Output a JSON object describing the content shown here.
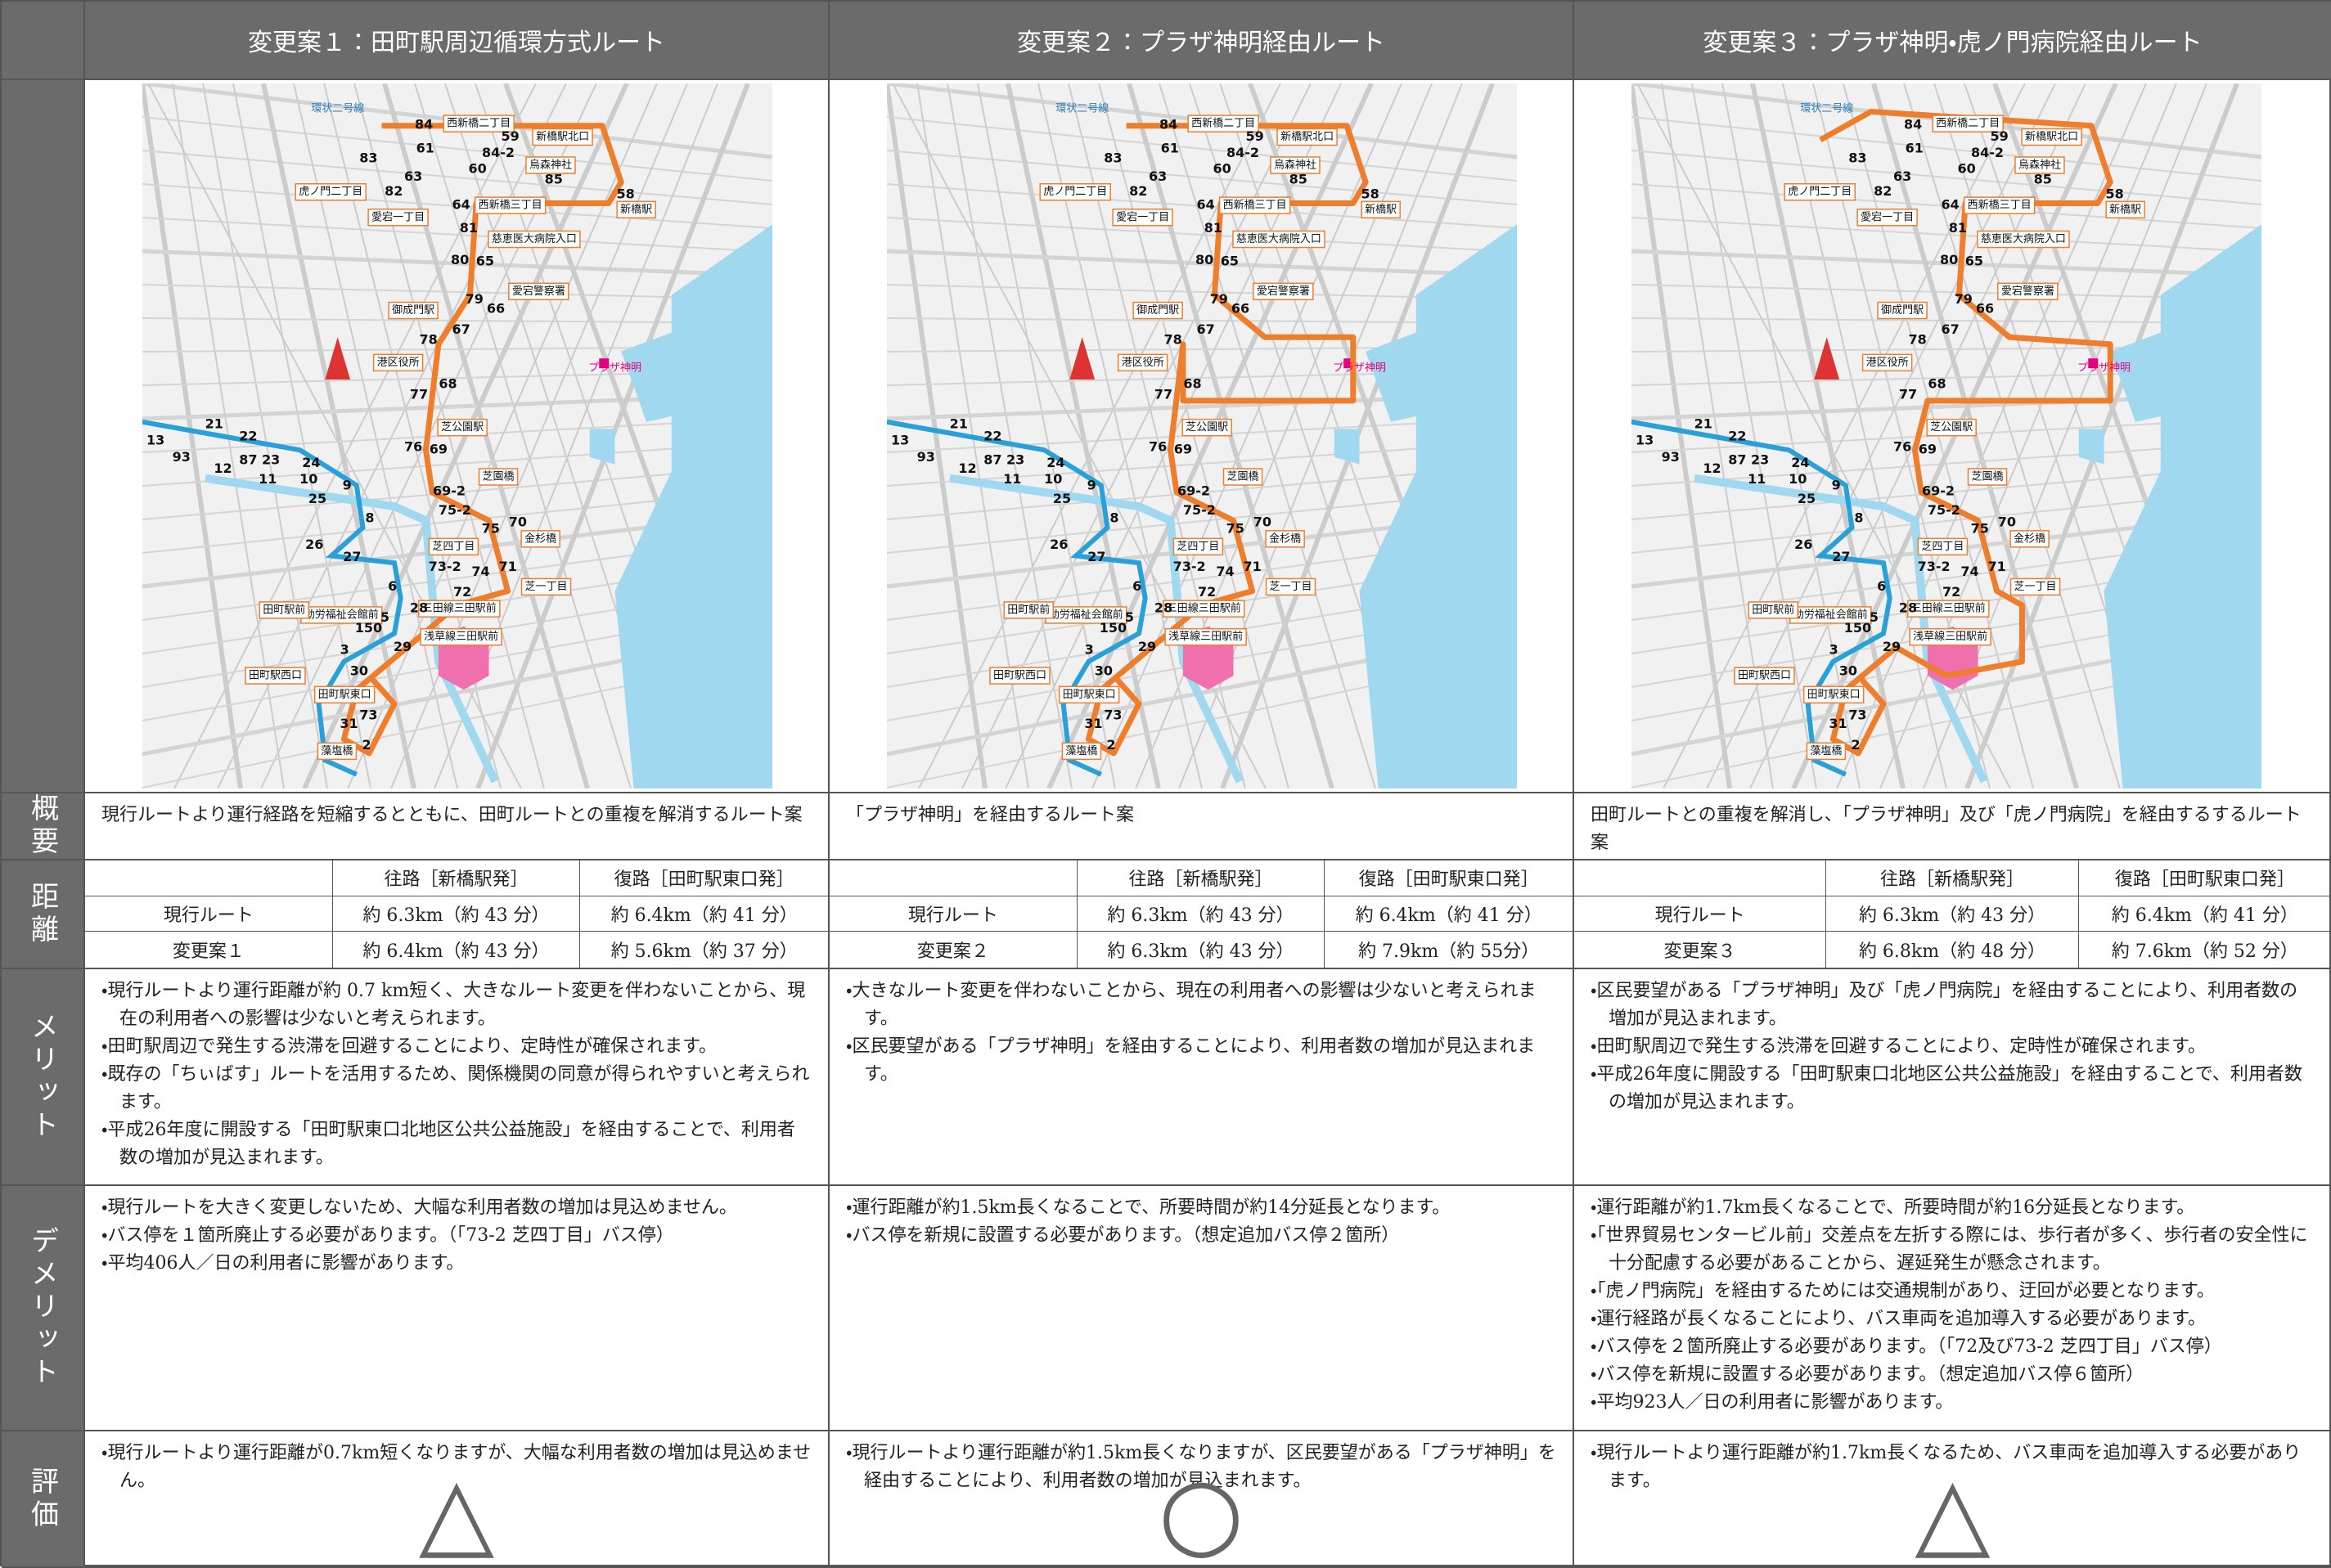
{
  "header": {
    "columns": [
      "変更案１：田町駅周辺循環方式ルート",
      "変更案２：プラザ神明経由ルート",
      "変更案３：プラザ神明・虎ノ門病院経由ルート"
    ]
  },
  "row_labels": [
    "概要",
    "距離",
    "メリット",
    "デメリット",
    "評価"
  ],
  "map_labels": [
    "環状二号線",
    "84",
    "西新橋二丁目",
    "59",
    "新橋駅北口",
    "61",
    "84-2",
    "烏森神社",
    "83",
    "63",
    "60",
    "85",
    "虎ノ門二丁目",
    "82",
    "64",
    "西新橋三丁目",
    "58",
    "新橋駅",
    "愛宕一丁目",
    "81",
    "慈恵医大病院入口",
    "80",
    "65",
    "愛宕警察署",
    "79",
    "66",
    "御成門駅",
    "67",
    "78",
    "港区役所",
    "68",
    "77",
    "プラザ神明",
    "芝公園駅",
    "76",
    "69",
    "芝園橋",
    "69-2",
    "75-2",
    "75",
    "70",
    "金杉橋",
    "芝四丁目",
    "73-2",
    "74",
    "71",
    "芝一丁目",
    "72",
    "三田線三田駅前",
    "28",
    "勤労福祉会館前",
    "150",
    "浅草線三田駅前",
    "29",
    "3",
    "30",
    "田町駅西口",
    "田町駅東口",
    "73",
    "31",
    "2",
    "藻塩橋",
    "田町駅前",
    "13",
    "93",
    "21",
    "22",
    "87",
    "23",
    "12",
    "11",
    "24",
    "10",
    "25",
    "9",
    "8",
    "26",
    "27",
    "6",
    "5"
  ],
  "plans": [
    {
      "summary": "現行ルートより運行経路を短縮するとともに、田町ルートとの重複を解消するルート案",
      "distance": {
        "headers": [
          "往路［新橋駅発］",
          "復路［田町駅東口発］"
        ],
        "rows": [
          [
            "現行ルート",
            "約 6.3km（約 43 分）",
            "約 6.4km（約 41 分）"
          ],
          [
            "変更案１",
            "約 6.4km（約 43 分）",
            "約 5.6km（約 37 分）"
          ]
        ]
      },
      "merits": [
        "・現行ルートより運行距離が約 0.7 km短く、大きなルート変更を伴わないことから、現在の利用者への影響は少ないと考えられます。",
        "・田町駅周辺で発生する渋滞を回避することにより、定時性が確保されます。",
        "・既存の「ちぃばす」ルートを活用するため、関係機関の同意が得られやすいと考えられます。",
        "・平成26年度に開設する「田町駅東口北地区公共公益施設」を経由することで、利用者数の増加が見込まれます。"
      ],
      "demerits": [
        "・現行ルートを大きく変更しないため、大幅な利用者数の増加は見込めません。",
        "・バス停を１箇所廃止する必要があります。（「73-2 芝四丁目」バス停）",
        "・平均406人／日の利用者に影響があります。"
      ],
      "evaluation": "・現行ルートより運行距離が0.7km短くなりますが、大幅な利用者数の増加は見込めません。",
      "rating": "△"
    },
    {
      "summary": "「プラザ神明」を経由するルート案",
      "distance": {
        "headers": [
          "往路［新橋駅発］",
          "復路［田町駅東口発］"
        ],
        "rows": [
          [
            "現行ルート",
            "約 6.3km（約 43 分）",
            "約 6.4km（約 41 分）"
          ],
          [
            "変更案２",
            "約 6.3km（約 43 分）",
            "約 7.9km（約 55分）"
          ]
        ]
      },
      "merits": [
        "・大きなルート変更を伴わないことから、現在の利用者への影響は少ないと考えられます。",
        "・区民要望がある「プラザ神明」を経由することにより、利用者数の増加が見込まれます。"
      ],
      "demerits": [
        "・運行距離が約1.5km長くなることで、所要時間が約14分延長となります。",
        "・バス停を新規に設置する必要があります。（想定追加バス停２箇所）"
      ],
      "evaluation": "・現行ルートより運行距離が約1.5km長くなりますが、区民要望がある「プラザ神明」を経由することにより、利用者数の増加が見込まれます。",
      "rating": "○"
    },
    {
      "summary": "田町ルートとの重複を解消し、「プラザ神明」及び「虎ノ門病院」を経由するするルート案",
      "distance": {
        "headers": [
          "往路［新橋駅発］",
          "復路［田町駅東口発］"
        ],
        "rows": [
          [
            "現行ルート",
            "約 6.3km（約 43 分）",
            "約 6.4km（約 41 分）"
          ],
          [
            "変更案３",
            "約 6.8km（約 48 分）",
            "約 7.6km（約 52 分）"
          ]
        ]
      },
      "merits": [
        "・区民要望がある「プラザ神明」及び「虎ノ門病院」を経由することにより、利用者数の増加が見込まれます。",
        "・田町駅周辺で発生する渋滞を回避することにより、定時性が確保されます。",
        "・平成26年度に開設する「田町駅東口北地区公共公益施設」を経由することで、利用者数の増加が見込まれます。"
      ],
      "demerits": [
        "・運行距離が約1.7km長くなることで、所要時間が約16分延長となります。",
        "・「世界貿易センタービル前」交差点を左折する際には、歩行者が多く、歩行者の安全性に十分配慮する必要があることから、遅延発生が懸念されます。",
        "・「虎ノ門病院」を経由するためには交通規制があり、迂回が必要となります。",
        "・運行経路が長くなることにより、バス車両を追加導入する必要があります。",
        "・バス停を２箇所廃止する必要があります。（「72及び73-2 芝四丁目」バス停）",
        "・バス停を新規に設置する必要があります。（想定追加バス停６箇所）",
        "・平均923人／日の利用者に影響があります。"
      ],
      "evaluation": "・現行ルートより運行距離が約1.7km長くなるため、バス車両を追加導入する必要があります。",
      "rating": "△"
    }
  ]
}
